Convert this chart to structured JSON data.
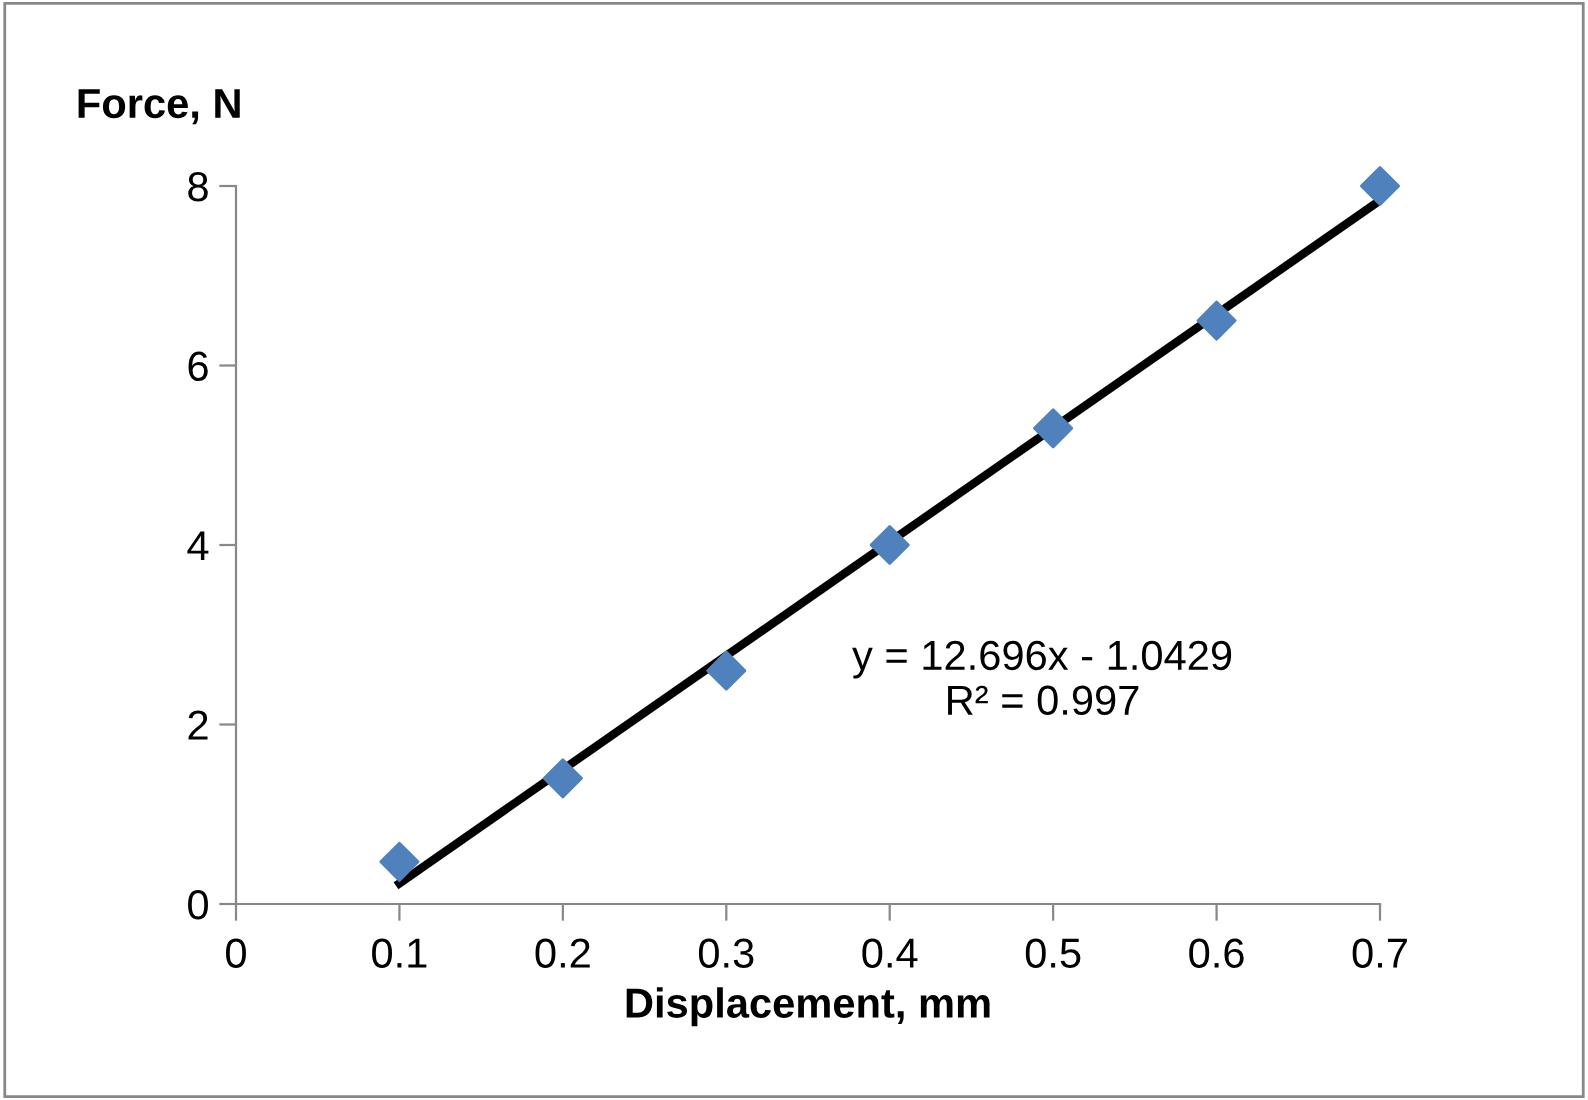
{
  "chart_data": {
    "type": "scatter",
    "xlabel": "Displacement, mm",
    "ylabel": "Force, N",
    "xlim": [
      0,
      0.7
    ],
    "xticks": [
      0,
      0.1,
      0.2,
      0.3,
      0.4,
      0.5,
      0.6,
      0.7
    ],
    "ylim": [
      0,
      8
    ],
    "yticks": [
      0,
      2,
      4,
      6,
      8
    ],
    "grid": false,
    "legend": false,
    "marker": "diamond",
    "series": [
      {
        "type": "scatter",
        "color": "#4f81bd",
        "x": [
          0.1,
          0.2,
          0.3,
          0.4,
          0.5,
          0.6,
          0.7
        ],
        "values": [
          0.47,
          1.4,
          2.6,
          4.0,
          5.3,
          6.5,
          8.0
        ]
      },
      {
        "type": "line",
        "color": "#000000",
        "marker": "none",
        "line_style": "solid",
        "x": [
          0.1,
          0.7
        ],
        "values": [
          0.23,
          7.84
        ]
      }
    ],
    "annotations": [
      "y = 12.696x - 1.0429\nR² = 0.997"
    ]
  }
}
